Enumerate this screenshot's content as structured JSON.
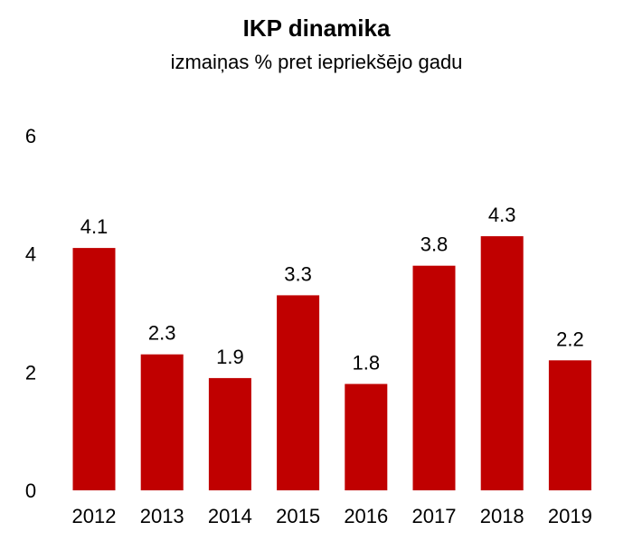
{
  "chart_data": {
    "type": "bar",
    "title": "IKP dinamika",
    "subtitle": "izmaiņas % pret iepriekšējo gadu",
    "categories": [
      "2012",
      "2013",
      "2014",
      "2015",
      "2016",
      "2017",
      "2018",
      "2019"
    ],
    "values": [
      4.1,
      2.3,
      1.9,
      3.3,
      1.8,
      3.8,
      4.3,
      2.2
    ],
    "data_labels": [
      "4.1",
      "2.3",
      "1.9",
      "3.3",
      "1.8",
      "3.8",
      "4.3",
      "2.2"
    ],
    "yticks": [
      "0",
      "2",
      "4",
      "6"
    ],
    "ylim": [
      0,
      6
    ],
    "xlabel": "",
    "ylabel": "",
    "grid": false,
    "legend": "none",
    "bar_color": "#c00000"
  }
}
